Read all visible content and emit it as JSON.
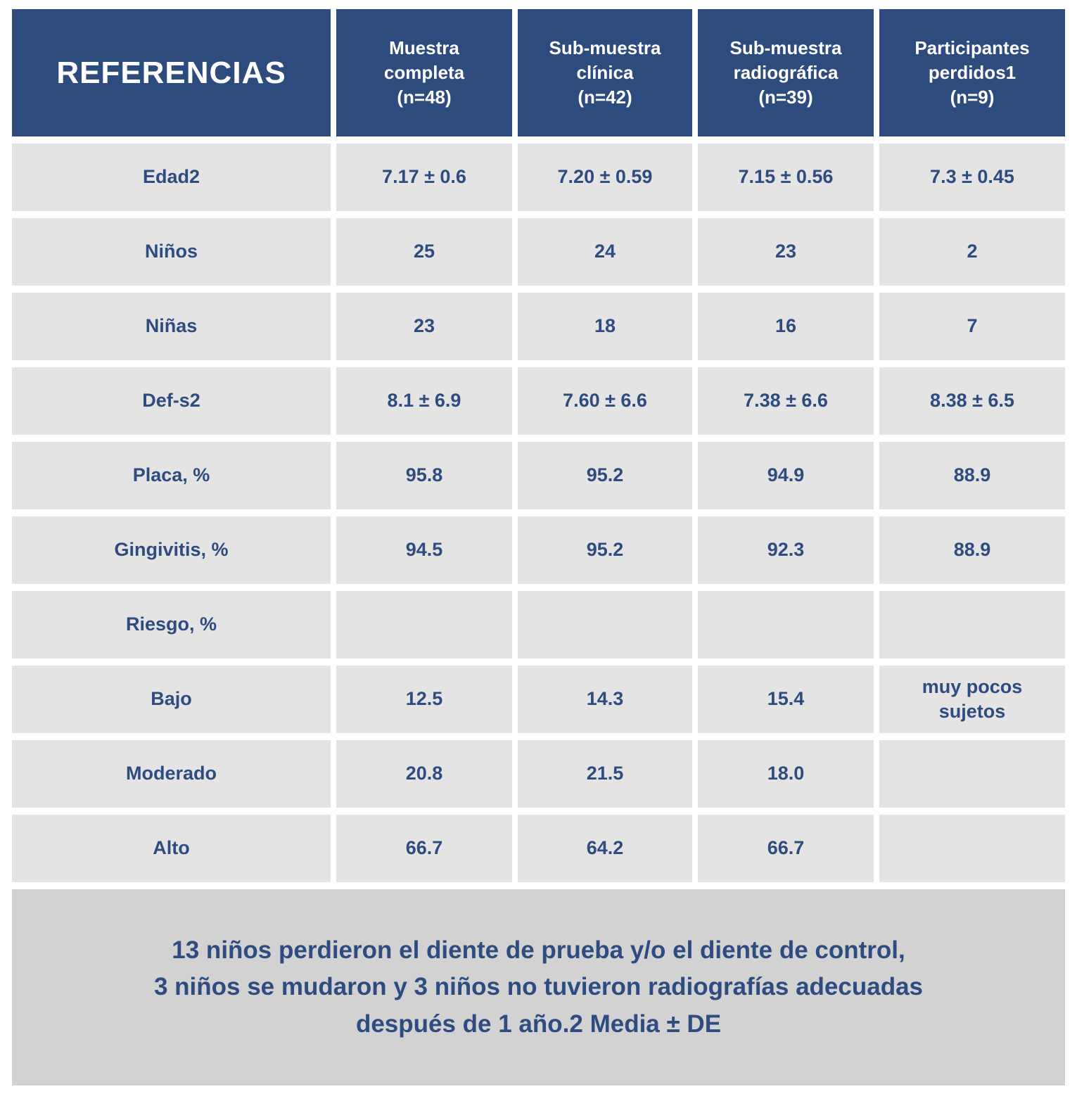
{
  "colors": {
    "header_bg": "#2E4B7E",
    "header_text": "#FFFFFF",
    "cell_bg": "#E4E4E5",
    "cell_text": "#2E4C80",
    "footer_bg": "#D2D2D2",
    "page_bg": "#FFFFFF"
  },
  "table": {
    "title": "REFERENCIAS",
    "column_headers": [
      "Muestra\ncompleta\n(n=48)",
      "Sub-muestra\nclínica\n(n=42)",
      "Sub-muestra\nradiográfica\n(n=39)",
      "Participantes\nperdidos1\n(n=9)"
    ],
    "rows": [
      {
        "label": "Edad2",
        "values": [
          "7.17 ± 0.6",
          "7.20 ± 0.59",
          "7.15 ± 0.56",
          "7.3 ± 0.45"
        ]
      },
      {
        "label": "Niños",
        "values": [
          "25",
          "24",
          "23",
          "2"
        ]
      },
      {
        "label": "Niñas",
        "values": [
          "23",
          "18",
          "16",
          "7"
        ]
      },
      {
        "label": "Def-s2",
        "values": [
          "8.1 ± 6.9",
          "7.60 ± 6.6",
          "7.38 ± 6.6",
          "8.38 ± 6.5"
        ]
      },
      {
        "label": "Placa, %",
        "values": [
          "95.8",
          "95.2",
          "94.9",
          "88.9"
        ]
      },
      {
        "label": "Gingivitis, %",
        "values": [
          "94.5",
          "95.2",
          "92.3",
          "88.9"
        ]
      },
      {
        "label": "Riesgo, %",
        "values": [
          "",
          "",
          "",
          ""
        ]
      },
      {
        "label": "Bajo",
        "values": [
          "12.5",
          "14.3",
          "15.4",
          "muy pocos\nsujetos"
        ]
      },
      {
        "label": "Moderado",
        "values": [
          "20.8",
          "21.5",
          "18.0",
          ""
        ]
      },
      {
        "label": "Alto",
        "values": [
          "66.7",
          "64.2",
          "66.7",
          ""
        ]
      }
    ]
  },
  "footer": {
    "note": "13 niños perdieron el diente de prueba y/o el diente de control,\n3 niños se mudaron y 3 niños no tuvieron radiografías adecuadas\ndespués de 1 año.2 Media ± DE"
  },
  "chart_data": {
    "type": "table",
    "title": "REFERENCIAS",
    "columns": [
      "REFERENCIAS",
      "Muestra completa (n=48)",
      "Sub-muestra clínica (n=42)",
      "Sub-muestra radiográfica (n=39)",
      "Participantes perdidos1 (n=9)"
    ],
    "rows": [
      [
        "Edad2",
        "7.17 ± 0.6",
        "7.20 ± 0.59",
        "7.15 ± 0.56",
        "7.3 ± 0.45"
      ],
      [
        "Niños",
        "25",
        "24",
        "23",
        "2"
      ],
      [
        "Niñas",
        "23",
        "18",
        "16",
        "7"
      ],
      [
        "Def-s2",
        "8.1 ± 6.9",
        "7.60 ± 6.6",
        "7.38 ± 6.6",
        "8.38 ± 6.5"
      ],
      [
        "Placa, %",
        "95.8",
        "95.2",
        "94.9",
        "88.9"
      ],
      [
        "Gingivitis, %",
        "94.5",
        "95.2",
        "92.3",
        "88.9"
      ],
      [
        "Riesgo, %",
        "",
        "",
        "",
        ""
      ],
      [
        "Bajo",
        "12.5",
        "14.3",
        "15.4",
        "muy pocos sujetos"
      ],
      [
        "Moderado",
        "20.8",
        "21.5",
        "18.0",
        ""
      ],
      [
        "Alto",
        "66.7",
        "64.2",
        "66.7",
        ""
      ]
    ],
    "annotations": [
      "13 niños perdieron el diente de prueba y/o el diente de control, 3 niños se mudaron y 3 niños no tuvieron radiografías adecuadas después de 1 año.2 Media ± DE"
    ]
  }
}
